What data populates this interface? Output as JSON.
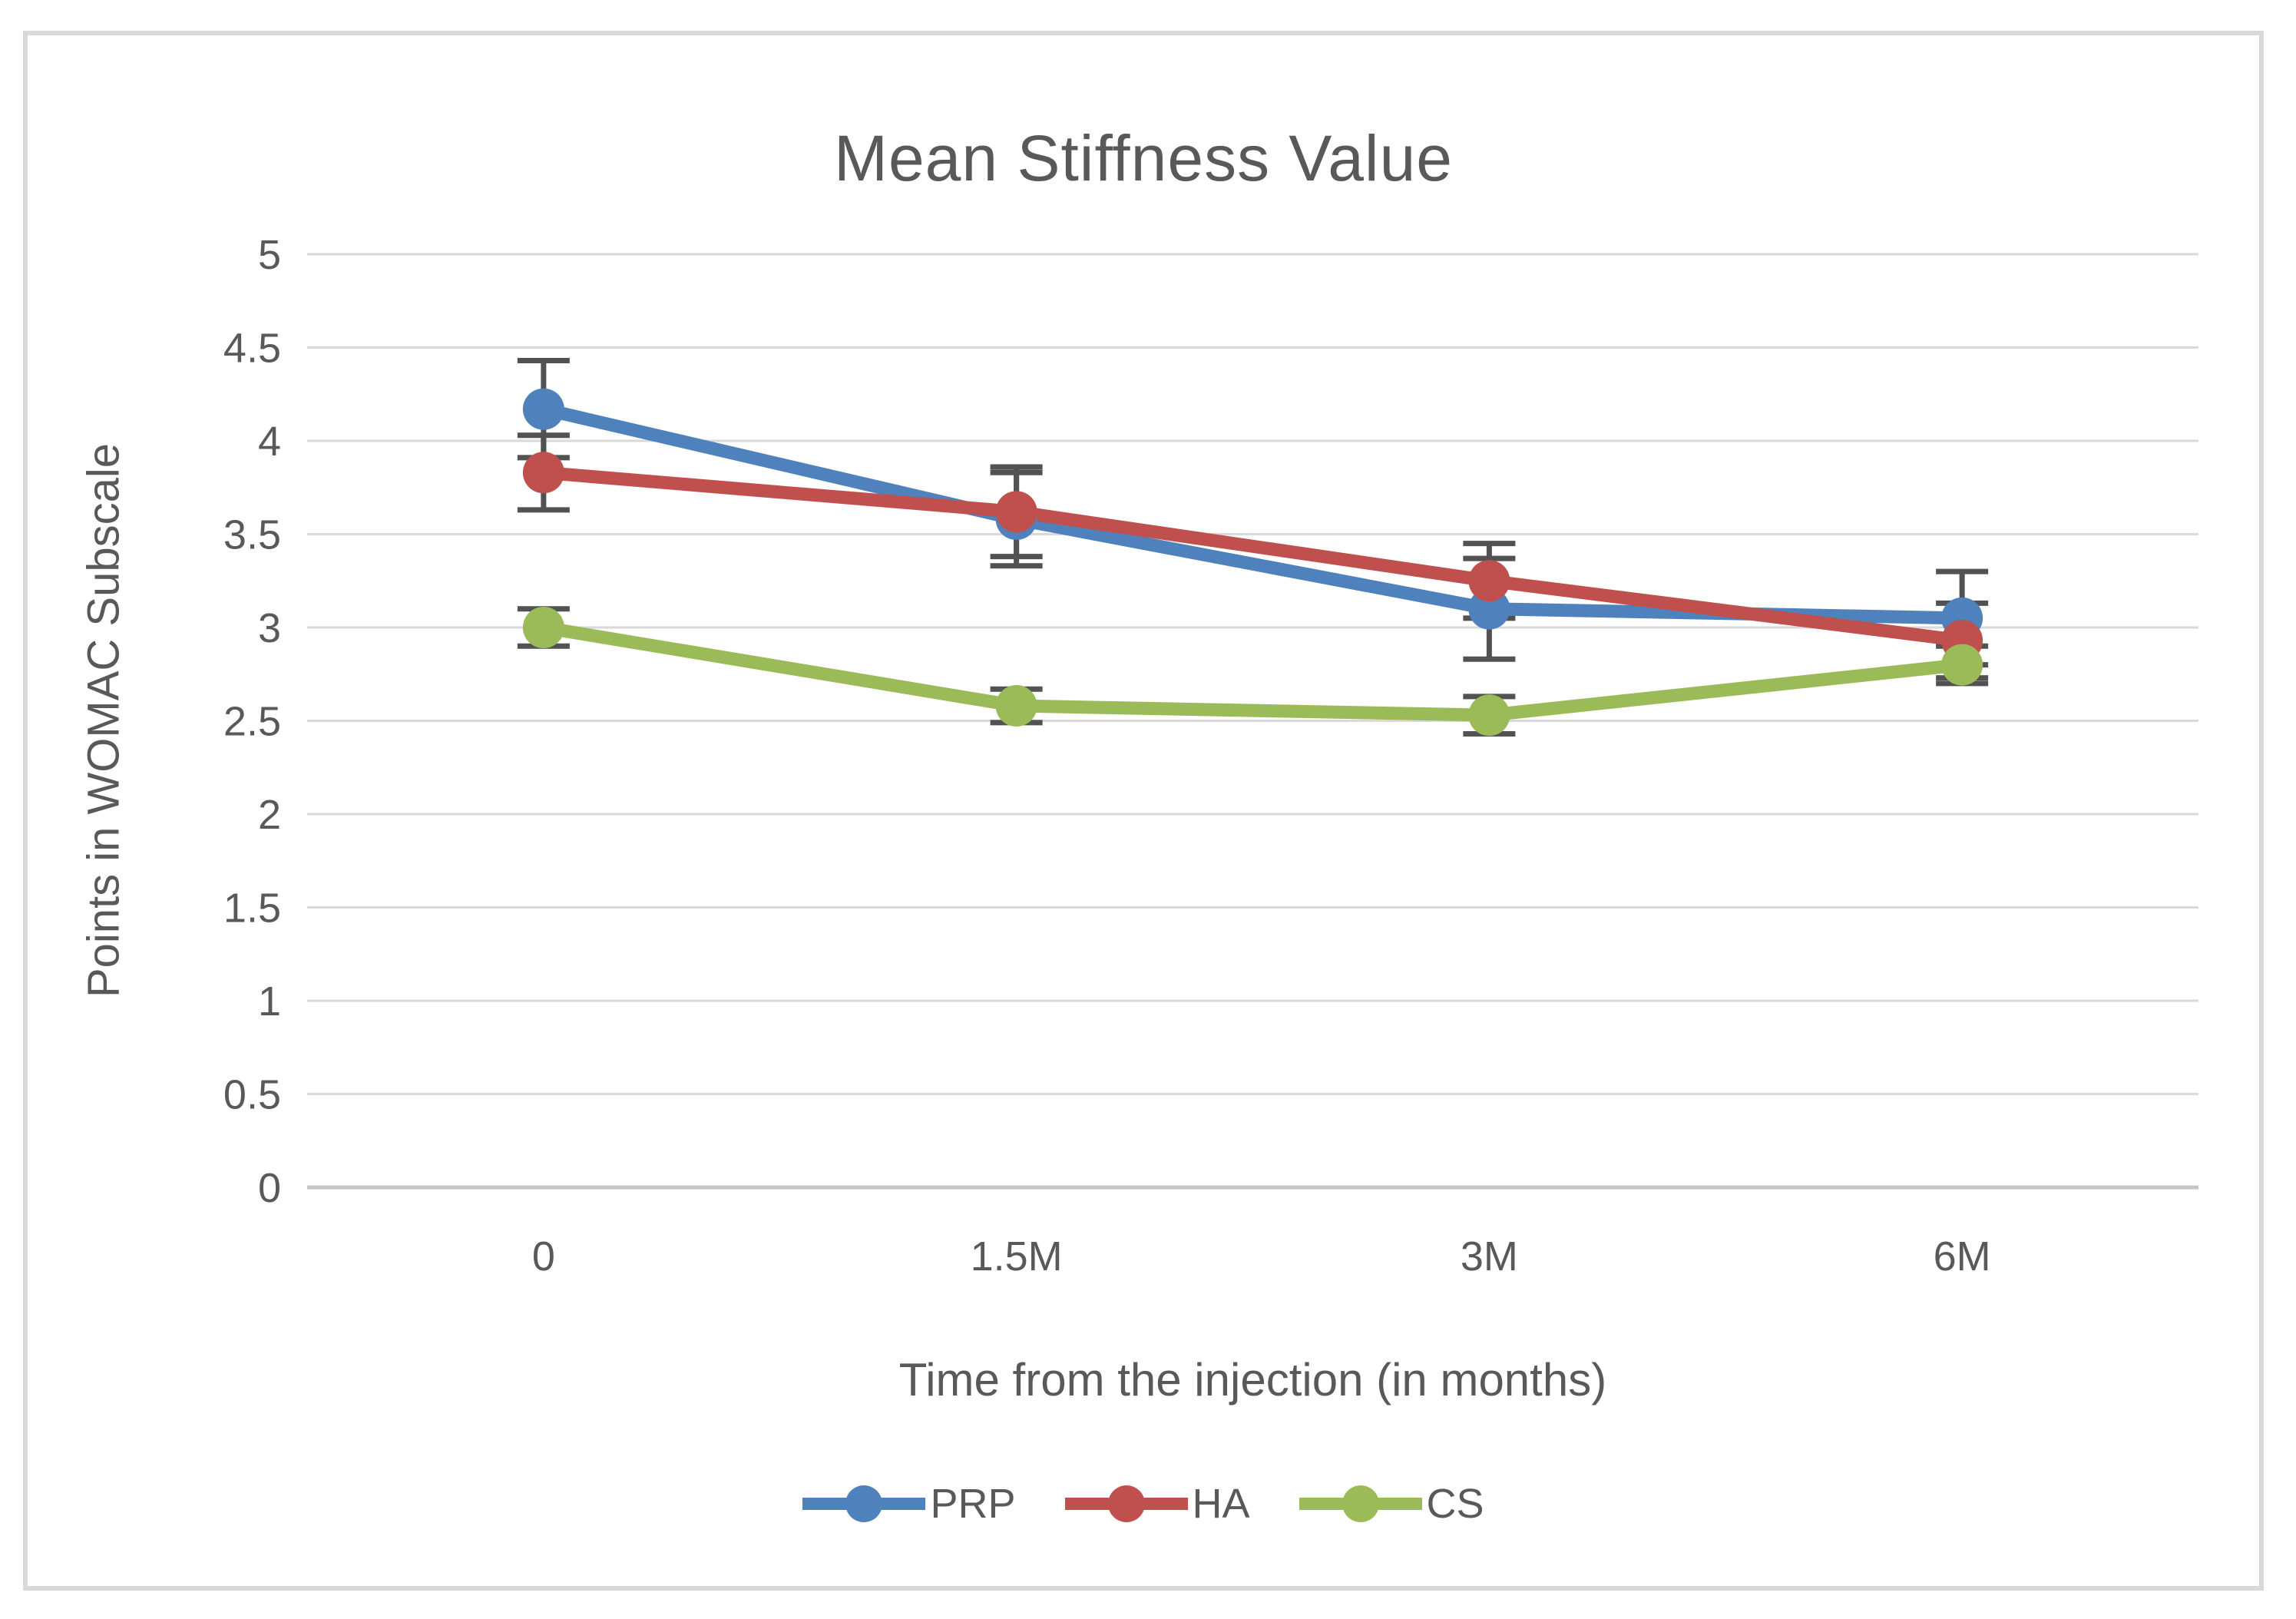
{
  "title": "Mean Stiffness Value",
  "chart_data": {
    "type": "line",
    "title": "Mean Stiffness Value",
    "xlabel": "Time from the injection (in months)",
    "ylabel": "Points in WOMAC Subscale",
    "categories": [
      "0",
      "1.5M",
      "3M",
      "6M"
    ],
    "ylim": [
      0,
      5
    ],
    "ytick_step": 0.5,
    "yticks": [
      "0",
      "0.5",
      "1",
      "1.5",
      "2",
      "2.5",
      "3",
      "3.5",
      "4",
      "4.5",
      "5"
    ],
    "grid": true,
    "legend_position": "bottom",
    "series": [
      {
        "name": "PRP",
        "color": "#4F81BD",
        "values": [
          4.17,
          3.58,
          3.1,
          3.05
        ],
        "errors": [
          0.26,
          0.25,
          0.27,
          0.25
        ]
      },
      {
        "name": "HA",
        "color": "#C0504D",
        "values": [
          3.83,
          3.62,
          3.25,
          2.93
        ],
        "errors": [
          0.2,
          0.24,
          0.2,
          0.2
        ]
      },
      {
        "name": "CS",
        "color": "#9BBB59",
        "values": [
          3.0,
          2.58,
          2.53,
          2.8
        ],
        "errors": [
          0.1,
          0.09,
          0.1,
          0.1
        ]
      }
    ],
    "error_bar_color": "#525252"
  },
  "colors": {
    "frame_border": "#d9d9d9",
    "gridline": "#d9d9d9",
    "axis_line": "#c6c6c6",
    "text": "#595959"
  }
}
